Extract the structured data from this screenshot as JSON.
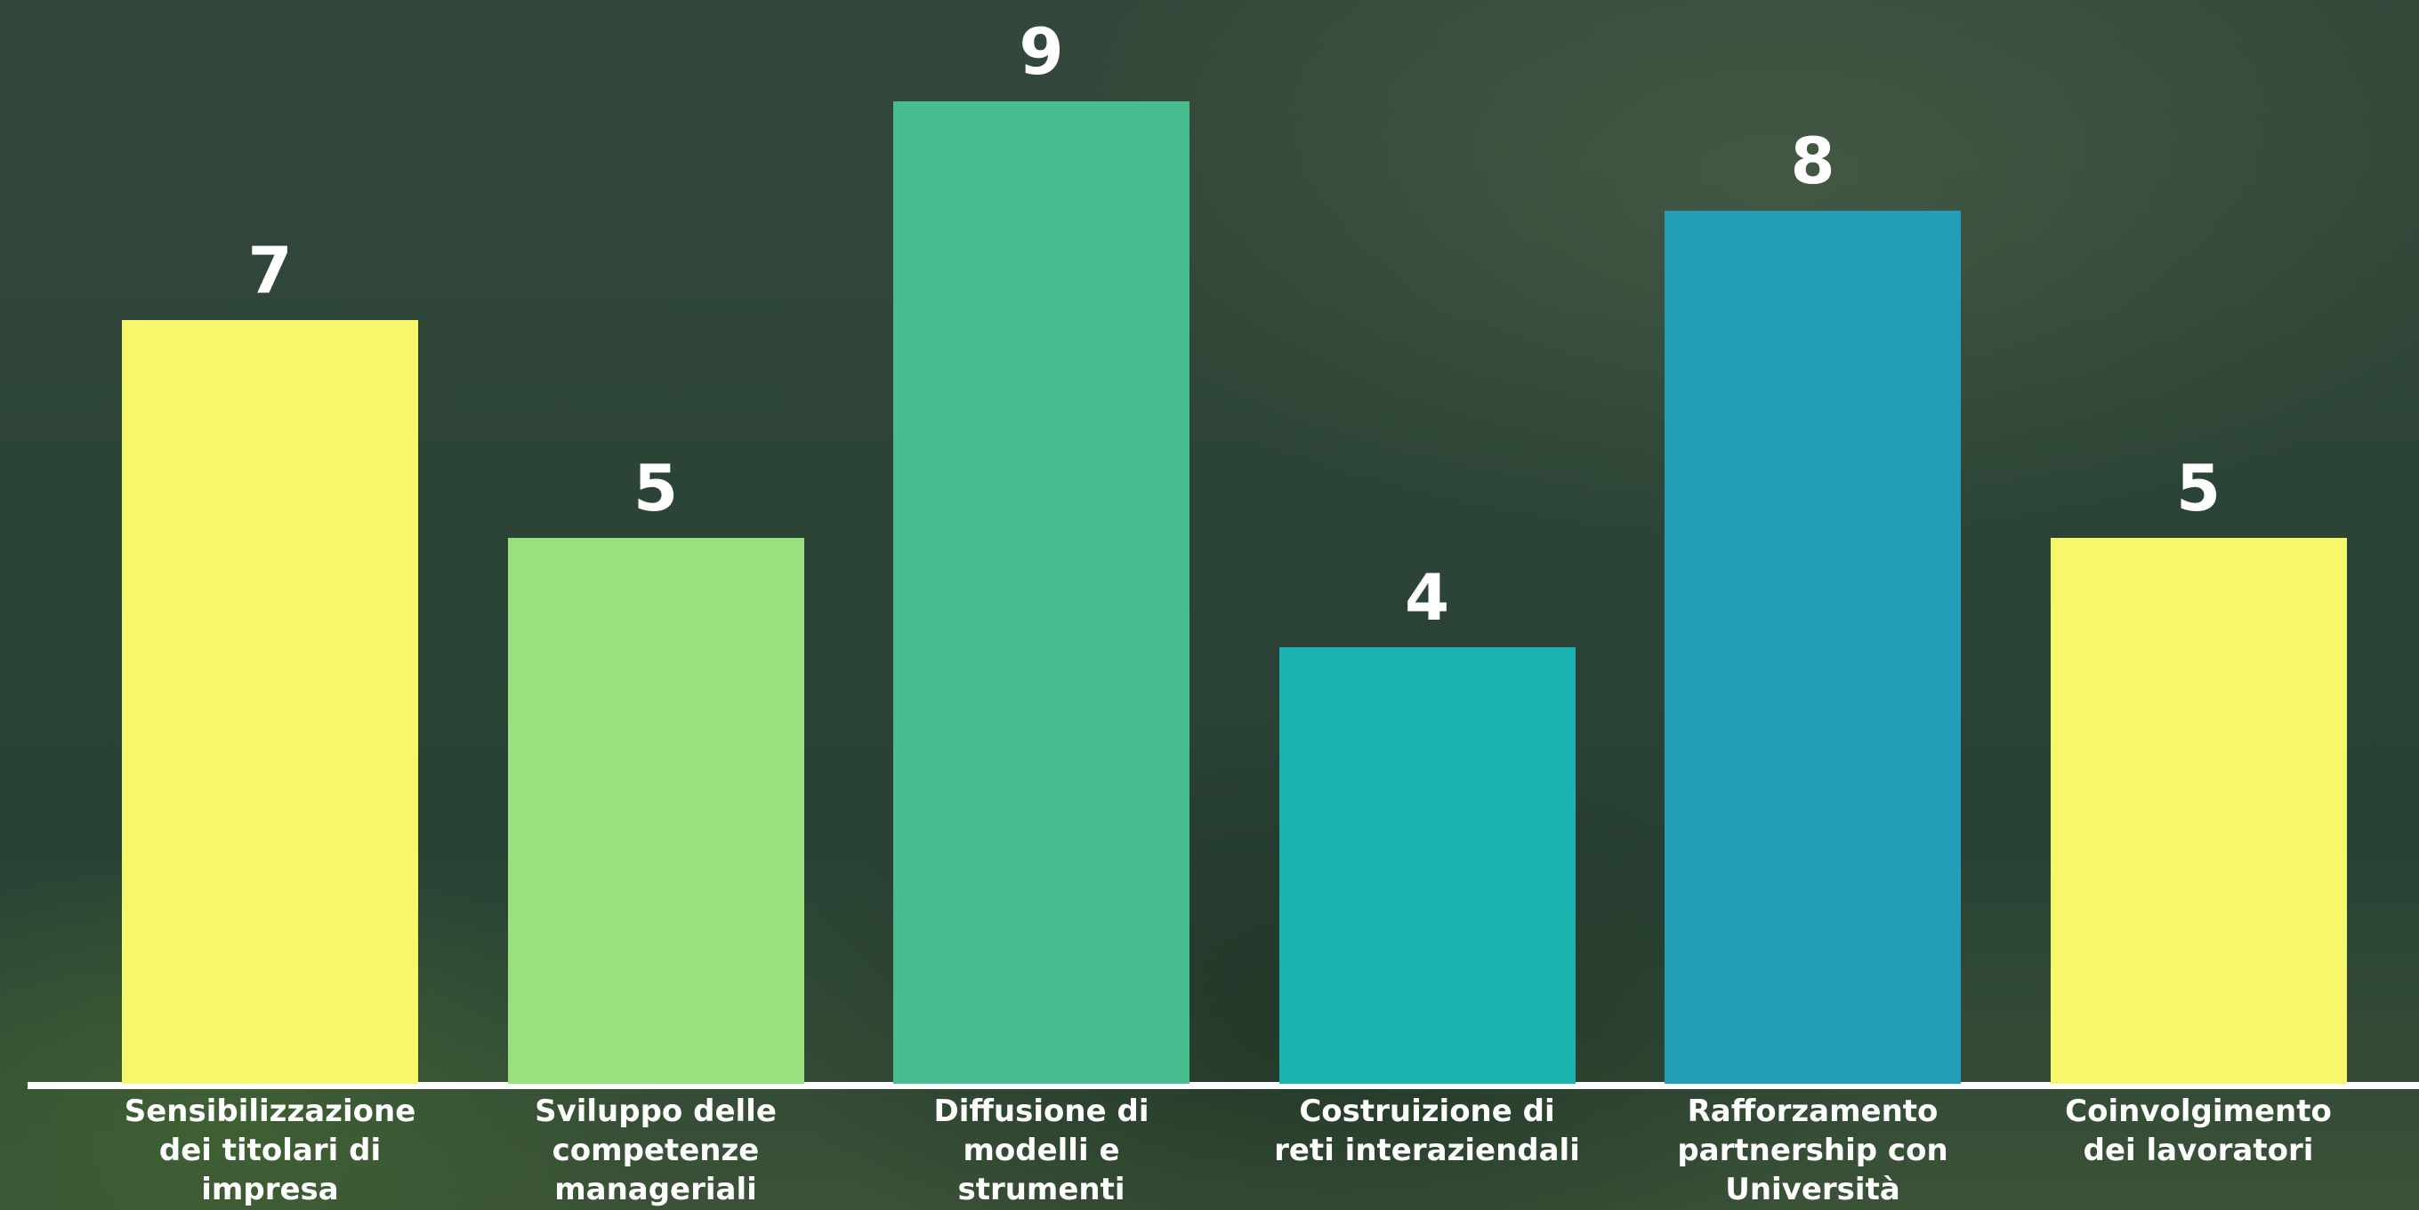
{
  "chart_data": {
    "type": "bar",
    "categories": [
      "Sensibilizzazione dei titolari di impresa",
      "Sviluppo delle competenze manageriali",
      "Diffusione di modelli e strumenti",
      "Costruizione di reti interaziendali",
      "Rafforzamento partnership con Università",
      "Coinvolgimento dei lavoratori"
    ],
    "values": [
      7,
      5,
      9,
      4,
      8,
      5
    ],
    "colors": [
      "#f7f76b",
      "#99e07e",
      "#48bd8f",
      "#1ab3b0",
      "#239eb8",
      "#f7f76b"
    ]
  }
}
